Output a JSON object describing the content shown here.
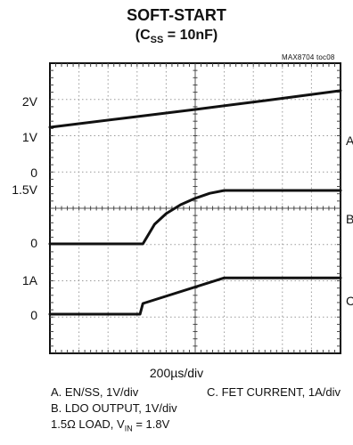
{
  "chart_data": {
    "type": "line",
    "title": "SOFT-START",
    "subtitle": "(C_SS = 10nF)",
    "subtitle_parts": {
      "open": "(C",
      "sub": "SS",
      "rest": " = 10nF)"
    },
    "tag": "MAX8704 toc08",
    "xlabel": "200µs/div",
    "x_divisions": 10,
    "y_divisions": 8,
    "grid": true,
    "y_tick_labels": [
      "2V",
      "1V",
      "0",
      "1.5V",
      "0",
      "1A",
      "0"
    ],
    "channel_markers": [
      "A",
      "B",
      "C"
    ],
    "series": [
      {
        "name": "A. EN/SS, 1V/div",
        "x": [
          0,
          2.5,
          5,
          7.5,
          10
        ],
        "y": [
          1.0,
          1.25,
          1.5,
          1.76,
          2.03
        ]
      },
      {
        "name": "B. LDO OUTPUT, 1V/div",
        "x": [
          0,
          3.2,
          3.6,
          4.0,
          4.5,
          5.0,
          5.5,
          6.0,
          10
        ],
        "y": [
          0,
          0,
          0.55,
          0.85,
          1.1,
          1.28,
          1.42,
          1.5,
          1.5
        ]
      },
      {
        "name": "C. FET CURRENT, 1A/div",
        "x": [
          0,
          3.1,
          3.2,
          6.0,
          10
        ],
        "y": [
          0,
          0,
          0.3,
          1.02,
          1.02
        ]
      }
    ],
    "legend": {
      "col1": [
        "A. EN/SS, 1V/div",
        "B. LDO OUTPUT, 1V/div"
      ],
      "col2": "C. FET CURRENT, 1A/div",
      "load_parts": {
        "prefix": "1.5Ω LOAD, V",
        "sub": "IN",
        "suffix": " = 1.8V"
      }
    }
  }
}
